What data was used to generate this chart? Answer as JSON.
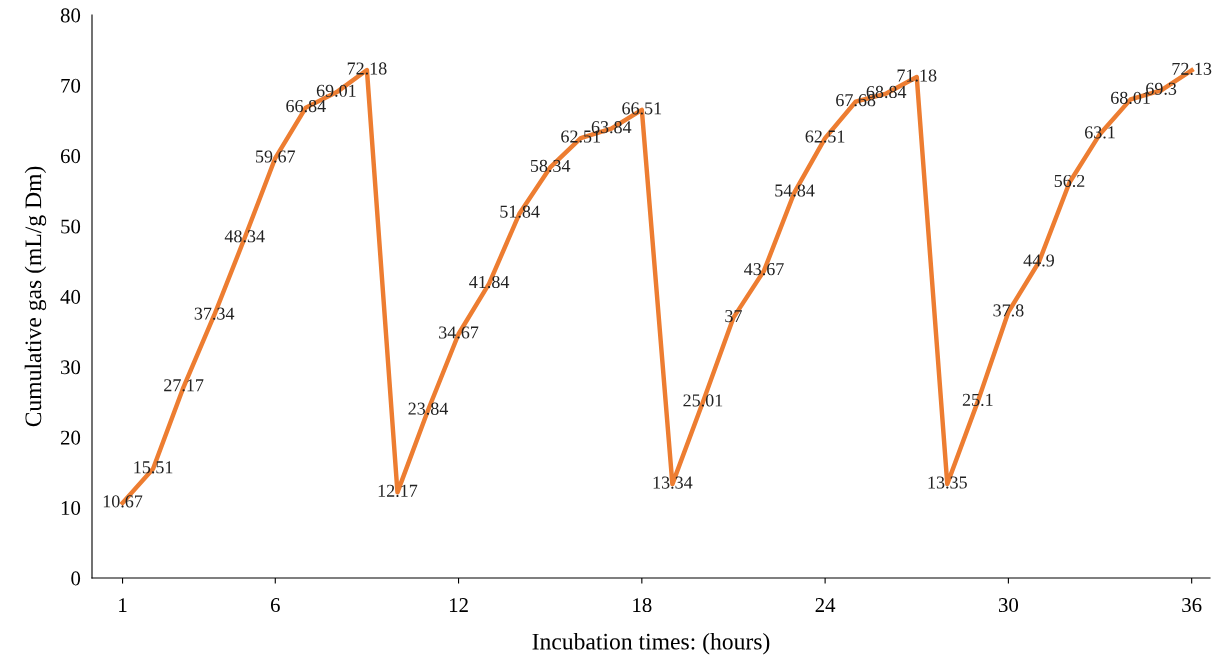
{
  "chart_data": {
    "type": "line",
    "xlabel": "Incubation times: (hours)",
    "ylabel": "Cumulative gas (mL/g Dm)",
    "x": [
      1,
      2,
      3,
      4,
      5,
      6,
      7,
      8,
      9,
      10,
      11,
      12,
      13,
      14,
      15,
      16,
      17,
      18,
      19,
      20,
      21,
      22,
      23,
      24,
      25,
      26,
      27,
      28,
      29,
      30,
      31,
      32,
      33,
      34,
      35,
      36
    ],
    "series": [
      {
        "color": "#ed7d31",
        "values": [
          10.67,
          15.51,
          27.17,
          37.34,
          48.34,
          59.67,
          66.84,
          69.01,
          72.18,
          12.17,
          23.84,
          34.67,
          41.84,
          51.84,
          58.34,
          62.51,
          63.84,
          66.51,
          13.34,
          25.01,
          37,
          43.67,
          54.84,
          62.51,
          67.68,
          68.84,
          71.18,
          13.35,
          25.1,
          37.8,
          44.9,
          56.2,
          63.1,
          68.01,
          69.3,
          72.13
        ]
      }
    ],
    "xlim": [
      0,
      36.6
    ],
    "xticks": [
      1,
      6,
      12,
      18,
      24,
      30,
      36
    ],
    "ylim": [
      0,
      80
    ],
    "yticks": [
      0,
      10,
      20,
      30,
      40,
      50,
      60,
      70,
      80
    ],
    "data_labels": true,
    "grid": false,
    "legend": false,
    "marker": "none",
    "line_style": "solid"
  }
}
